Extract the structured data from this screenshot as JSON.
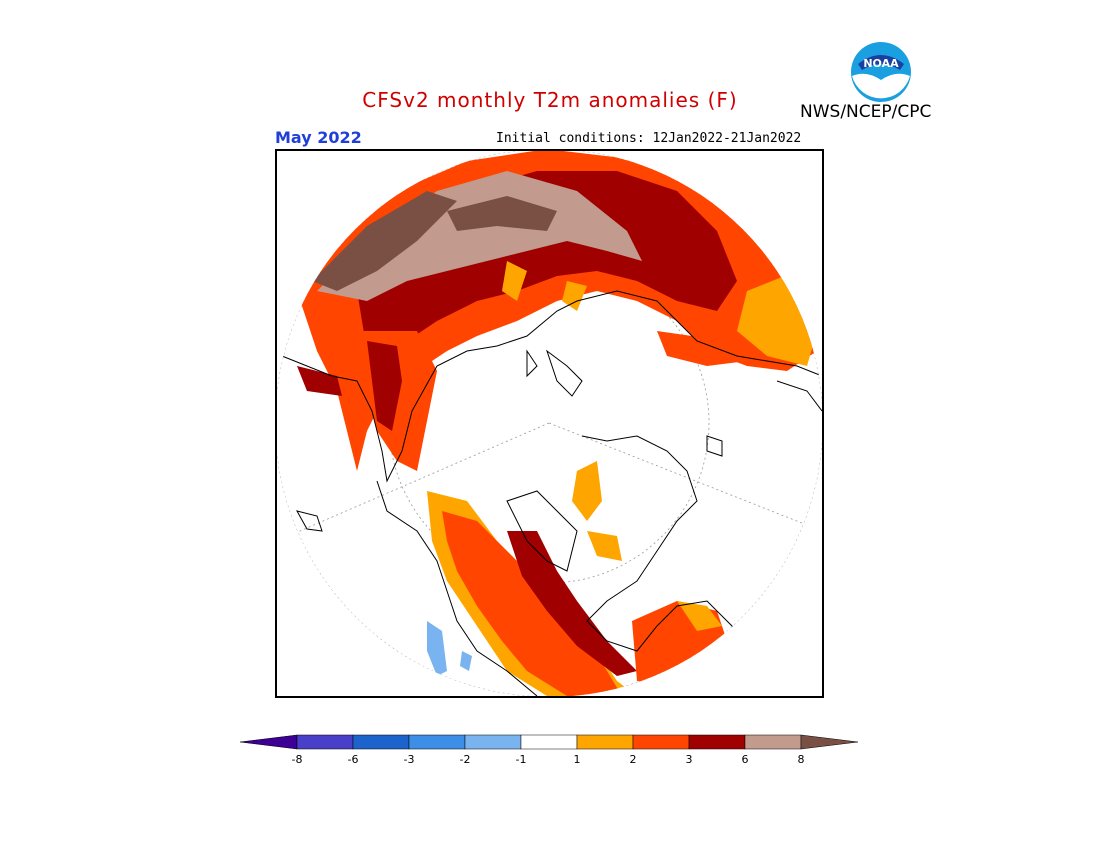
{
  "header": {
    "title": "CFSv2 monthly T2m anomalies (F)",
    "valid_month": "May 2022",
    "initial_conditions": "Initial conditions: 12Jan2022-21Jan2022",
    "organization": "NWS/NCEP/CPC",
    "logo_text": "NOAA"
  },
  "map": {
    "projection": "north polar stereographic",
    "variable": "T2m anomaly",
    "units": "F"
  },
  "colorbar": {
    "tick_labels": [
      "-8",
      "-6",
      "-3",
      "-2",
      "-1",
      "1",
      "2",
      "3",
      "6",
      "8"
    ],
    "bins": [
      {
        "color": "#3c0095"
      },
      {
        "color": "#4a3fc8"
      },
      {
        "color": "#1d63cc"
      },
      {
        "color": "#3c8ee6"
      },
      {
        "color": "#7ab4f0"
      },
      {
        "color": "#ffffff"
      },
      {
        "color": "#ffa500"
      },
      {
        "color": "#ff4500"
      },
      {
        "color": "#a00000"
      },
      {
        "color": "#c29a8e"
      },
      {
        "color": "#7a5045"
      }
    ]
  }
}
